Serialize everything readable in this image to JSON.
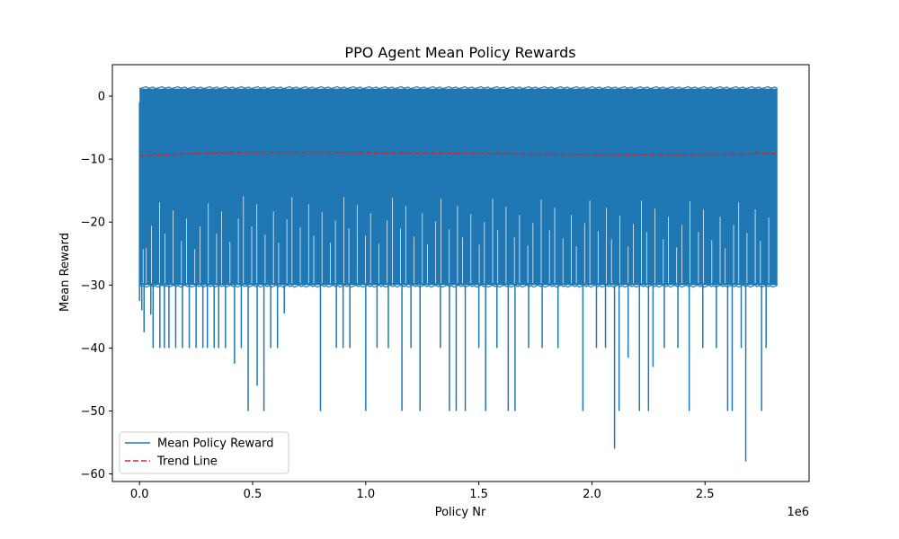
{
  "chart_data": {
    "type": "line",
    "title": "PPO Agent Mean Policy Rewards",
    "xlabel": "Policy Nr",
    "ylabel": "Mean Reward",
    "x_offset_label": "1e6",
    "xlim": [
      -0.12,
      2.96
    ],
    "ylim": [
      -61.2,
      5.0
    ],
    "x_ticks": [
      {
        "value": 0.0,
        "label": "0.0"
      },
      {
        "value": 0.5,
        "label": "0.5"
      },
      {
        "value": 1.0,
        "label": "1.0"
      },
      {
        "value": 1.5,
        "label": "1.5"
      },
      {
        "value": 2.0,
        "label": "2.0"
      },
      {
        "value": 2.5,
        "label": "2.5"
      }
    ],
    "y_ticks": [
      {
        "value": 0,
        "label": "0"
      },
      {
        "value": -10,
        "label": "−10"
      },
      {
        "value": -20,
        "label": "−20"
      },
      {
        "value": -30,
        "label": "−30"
      },
      {
        "value": -40,
        "label": "−40"
      },
      {
        "value": -50,
        "label": "−50"
      },
      {
        "value": -60,
        "label": "−60"
      }
    ],
    "grid": false,
    "legend_position": "lower-left",
    "series": [
      {
        "name": "Mean Policy Reward",
        "color": "#1f77b4",
        "style": "solid",
        "band": {
          "x_start": 0.0,
          "x_end": 2.82,
          "upper": 1.2,
          "lower": -30
        },
        "spikes": [
          {
            "x": 0.01,
            "y": -34
          },
          {
            "x": 0.02,
            "y": -37.5
          },
          {
            "x": 0.05,
            "y": -34.7
          },
          {
            "x": 0.06,
            "y": -40
          },
          {
            "x": 0.09,
            "y": -40
          },
          {
            "x": 0.11,
            "y": -40
          },
          {
            "x": 0.13,
            "y": -40
          },
          {
            "x": 0.16,
            "y": -40
          },
          {
            "x": 0.19,
            "y": -40
          },
          {
            "x": 0.22,
            "y": -40
          },
          {
            "x": 0.25,
            "y": -40
          },
          {
            "x": 0.28,
            "y": -40
          },
          {
            "x": 0.3,
            "y": -40
          },
          {
            "x": 0.33,
            "y": -40
          },
          {
            "x": 0.35,
            "y": -40
          },
          {
            "x": 0.38,
            "y": -40
          },
          {
            "x": 0.42,
            "y": -42.5
          },
          {
            "x": 0.45,
            "y": -40
          },
          {
            "x": 0.48,
            "y": -50
          },
          {
            "x": 0.52,
            "y": -46
          },
          {
            "x": 0.55,
            "y": -50
          },
          {
            "x": 0.58,
            "y": -40
          },
          {
            "x": 0.61,
            "y": -40
          },
          {
            "x": 0.64,
            "y": -34.5
          },
          {
            "x": 0.8,
            "y": -50
          },
          {
            "x": 0.87,
            "y": -40
          },
          {
            "x": 0.9,
            "y": -40
          },
          {
            "x": 0.93,
            "y": -40
          },
          {
            "x": 1.0,
            "y": -50
          },
          {
            "x": 1.05,
            "y": -40
          },
          {
            "x": 1.1,
            "y": -40
          },
          {
            "x": 1.16,
            "y": -50
          },
          {
            "x": 1.2,
            "y": -40
          },
          {
            "x": 1.24,
            "y": -50
          },
          {
            "x": 1.33,
            "y": -40
          },
          {
            "x": 1.37,
            "y": -50
          },
          {
            "x": 1.4,
            "y": -50
          },
          {
            "x": 1.44,
            "y": -50
          },
          {
            "x": 1.5,
            "y": -40
          },
          {
            "x": 1.53,
            "y": -50
          },
          {
            "x": 1.58,
            "y": -40
          },
          {
            "x": 1.63,
            "y": -50
          },
          {
            "x": 1.66,
            "y": -50
          },
          {
            "x": 1.72,
            "y": -40
          },
          {
            "x": 1.78,
            "y": -40
          },
          {
            "x": 1.85,
            "y": -40
          },
          {
            "x": 1.96,
            "y": -50
          },
          {
            "x": 2.02,
            "y": -40
          },
          {
            "x": 2.06,
            "y": -40
          },
          {
            "x": 2.1,
            "y": -56
          },
          {
            "x": 2.12,
            "y": -50
          },
          {
            "x": 2.16,
            "y": -41.5
          },
          {
            "x": 2.21,
            "y": -50
          },
          {
            "x": 2.25,
            "y": -50
          },
          {
            "x": 2.27,
            "y": -43
          },
          {
            "x": 2.32,
            "y": -40
          },
          {
            "x": 2.38,
            "y": -40
          },
          {
            "x": 2.43,
            "y": -50
          },
          {
            "x": 2.49,
            "y": -40
          },
          {
            "x": 2.55,
            "y": -40
          },
          {
            "x": 2.6,
            "y": -50
          },
          {
            "x": 2.62,
            "y": -50
          },
          {
            "x": 2.66,
            "y": -40
          },
          {
            "x": 2.68,
            "y": -58
          },
          {
            "x": 2.75,
            "y": -50
          },
          {
            "x": 2.77,
            "y": -40
          }
        ]
      },
      {
        "name": "Trend Line",
        "color": "#d62728",
        "style": "dashed",
        "x": [
          0.0,
          0.2,
          0.4,
          0.6,
          0.8,
          1.0,
          1.2,
          1.4,
          1.6,
          1.8,
          2.0,
          2.2,
          2.4,
          2.6,
          2.82
        ],
        "y": [
          -9.5,
          -9.15,
          -9.0,
          -8.95,
          -8.95,
          -9.0,
          -9.05,
          -9.1,
          -9.15,
          -9.2,
          -9.25,
          -9.28,
          -9.25,
          -9.2,
          -9.1
        ]
      }
    ]
  }
}
